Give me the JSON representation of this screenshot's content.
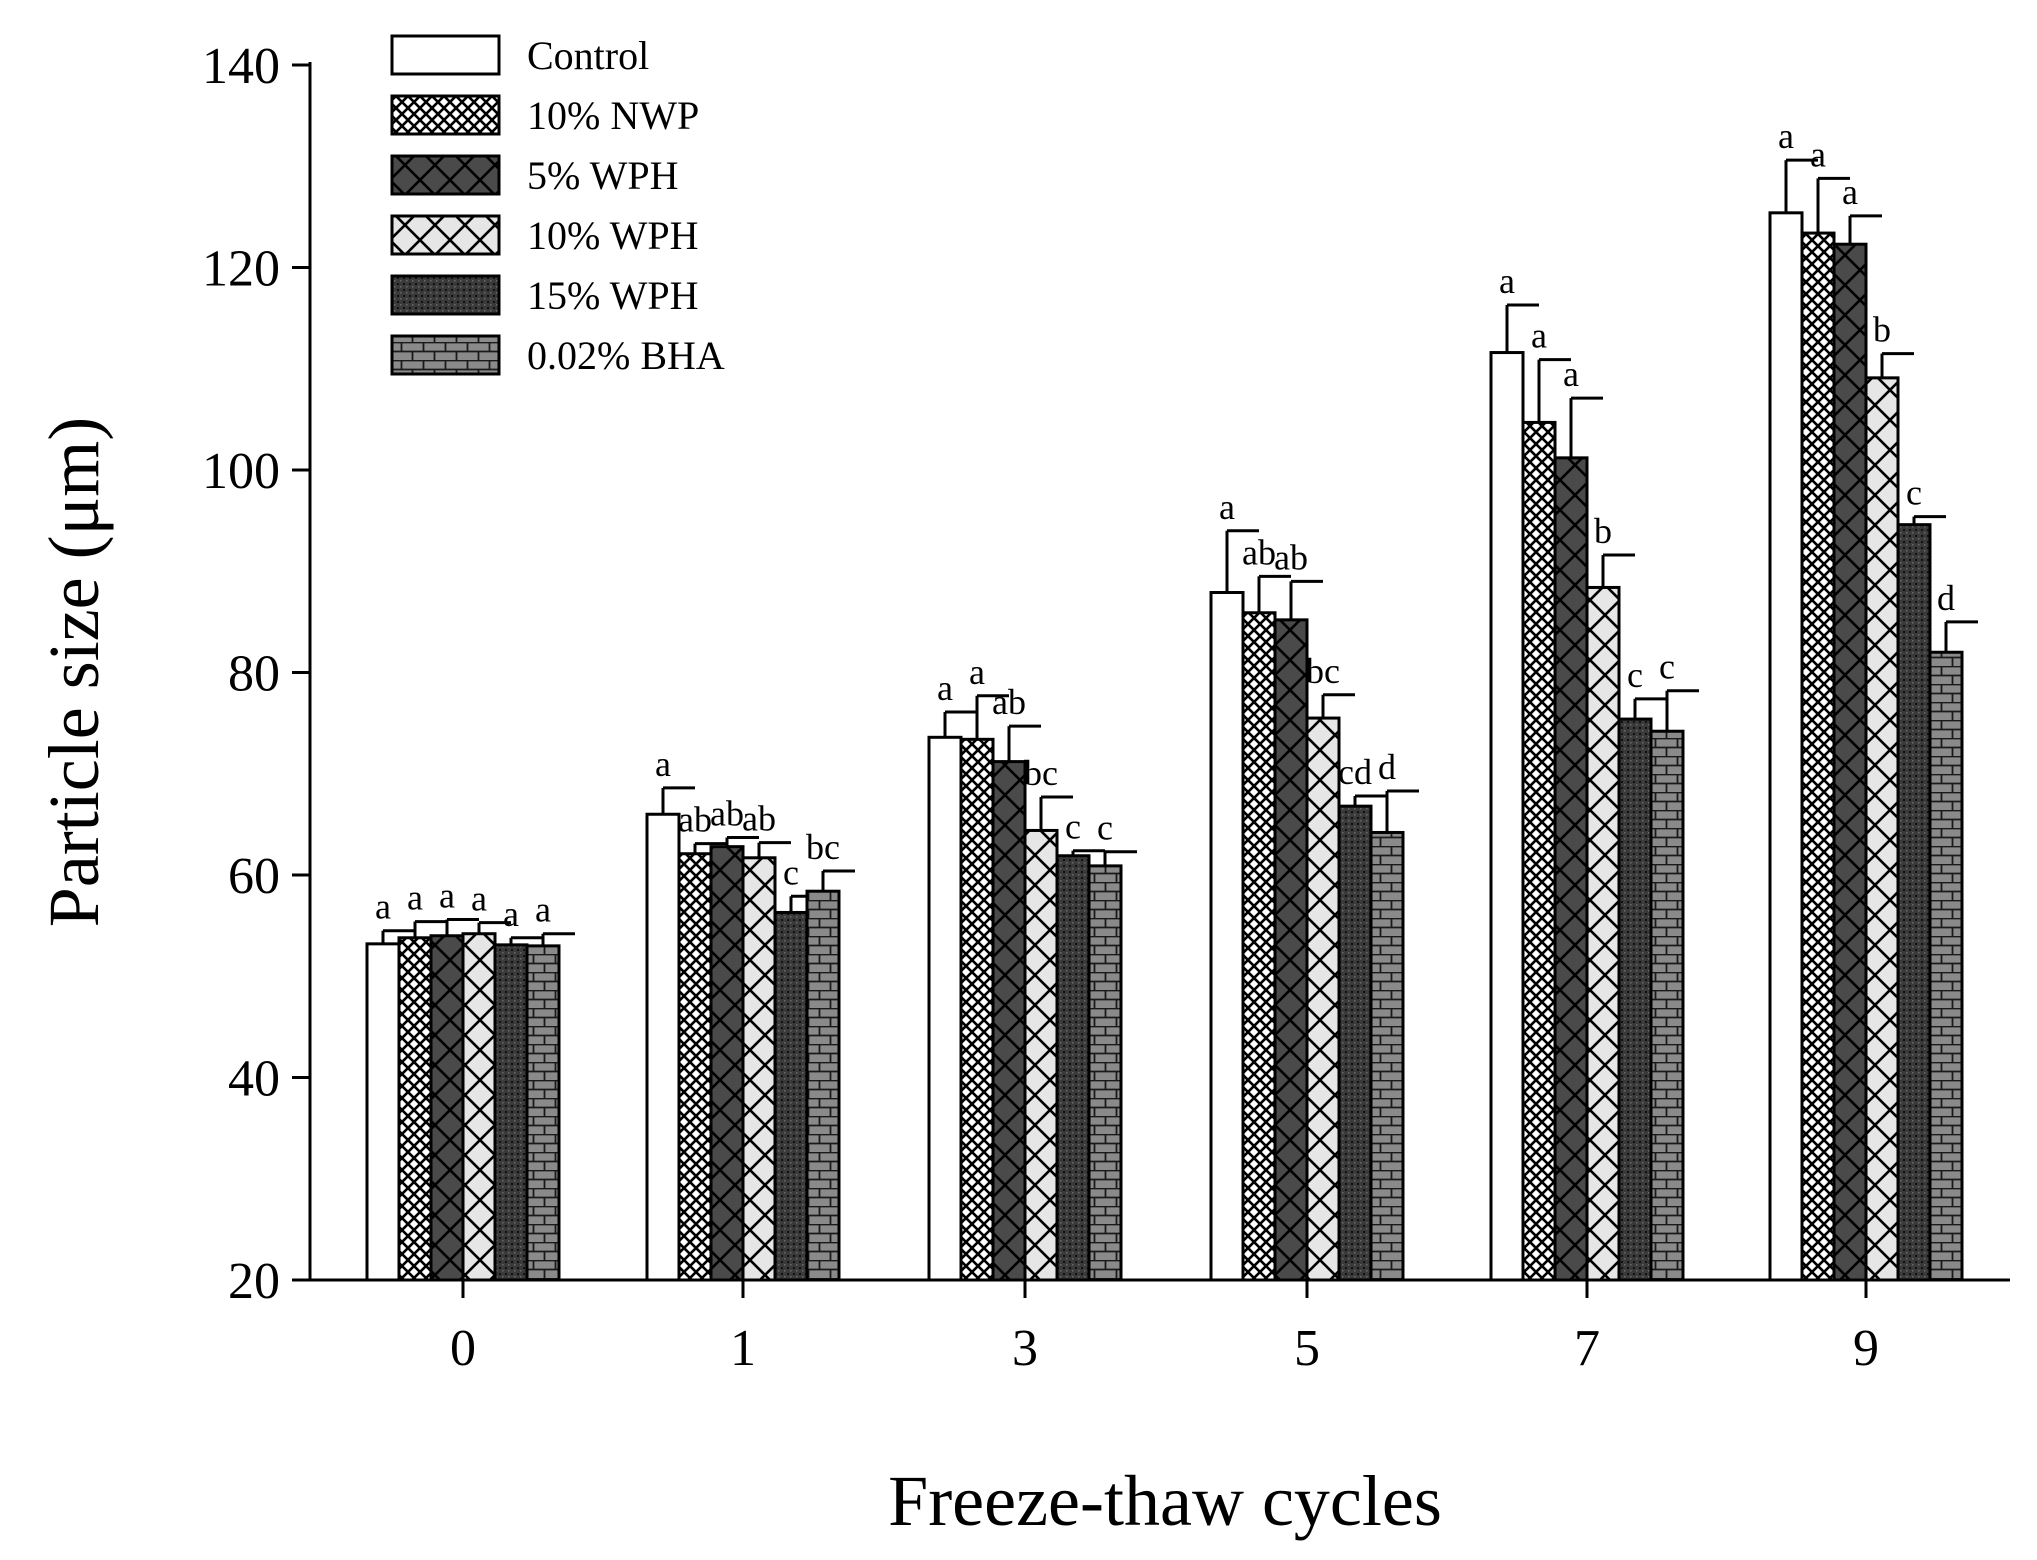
{
  "chart_data": {
    "type": "bar",
    "xlabel": "Freeze-thaw cycles",
    "ylabel": "Particle size (μm)",
    "ylim": [
      20,
      140
    ],
    "yticks": [
      20,
      40,
      60,
      80,
      100,
      120,
      140
    ],
    "categories": [
      "0",
      "1",
      "3",
      "5",
      "7",
      "9"
    ],
    "legend_position": "top-left",
    "series": [
      {
        "name": "Control",
        "pattern": "white",
        "values": [
          53.2,
          66.0,
          73.6,
          87.9,
          111.6,
          125.4
        ],
        "errors": [
          1.3,
          2.6,
          2.5,
          6.1,
          4.7,
          5.2
        ],
        "sig": [
          "a",
          "a",
          "a",
          "a",
          "a",
          "a"
        ]
      },
      {
        "name": "10% NWP",
        "pattern": "crosshatch-fine",
        "values": [
          53.8,
          62.1,
          73.4,
          85.9,
          104.7,
          123.4
        ],
        "errors": [
          1.6,
          1.0,
          4.3,
          3.6,
          6.2,
          5.4
        ],
        "sig": [
          "a",
          "ab",
          "a",
          "ab",
          "a",
          "a"
        ]
      },
      {
        "name": "5% WPH",
        "pattern": "x-dark",
        "values": [
          54.0,
          62.8,
          71.2,
          85.2,
          101.2,
          122.3
        ],
        "errors": [
          1.6,
          0.9,
          3.5,
          3.8,
          5.9,
          2.8
        ],
        "sig": [
          "a",
          "ab",
          "ab",
          "ab",
          "a",
          "a"
        ]
      },
      {
        "name": "10% WPH",
        "pattern": "x-light",
        "values": [
          54.2,
          61.7,
          64.4,
          75.5,
          88.4,
          109.1
        ],
        "errors": [
          1.1,
          1.5,
          3.3,
          2.3,
          3.2,
          2.4
        ],
        "sig": [
          "a",
          "ab",
          "bc",
          "bc",
          "b",
          "b"
        ]
      },
      {
        "name": "15% WPH",
        "pattern": "dots-dark",
        "values": [
          53.1,
          56.3,
          61.9,
          66.8,
          75.4,
          94.6
        ],
        "errors": [
          0.7,
          1.6,
          0.5,
          1.0,
          2.0,
          0.8
        ],
        "sig": [
          "a",
          "c",
          "c",
          "cd",
          "c",
          "c"
        ]
      },
      {
        "name": "0.02% BHA",
        "pattern": "brick",
        "values": [
          53.0,
          58.4,
          60.9,
          64.2,
          74.2,
          82.0
        ],
        "errors": [
          1.2,
          2.0,
          1.4,
          4.1,
          4.0,
          3.0
        ],
        "sig": [
          "a",
          "bc",
          "c",
          "d",
          "c",
          "d"
        ]
      }
    ]
  }
}
